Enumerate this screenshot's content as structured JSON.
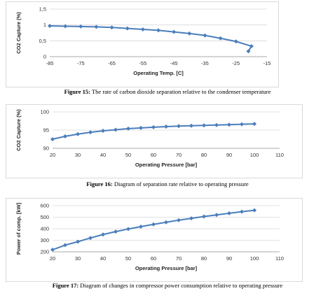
{
  "chart_data": [
    {
      "type": "line",
      "title": "",
      "xlabel": "Operating Temp. [C]",
      "ylabel": "CO2 Capture (%)",
      "xlim": [
        -85,
        -15
      ],
      "ylim": [
        0,
        1.5
      ],
      "xticks": [
        "-85",
        "-75",
        "-65",
        "-55",
        "-45",
        "-35",
        "-25",
        "-15"
      ],
      "yticks": [
        "0",
        "0,5",
        "1",
        "1,5"
      ],
      "grid": "horizontal",
      "color": "#4a7ebb",
      "marker": "diamond",
      "series": [
        {
          "x": [
            -85,
            -80,
            -75,
            -70,
            -65,
            -60,
            -55,
            -50,
            -45,
            -40,
            -35,
            -30,
            -25,
            -20
          ],
          "y": [
            0.97,
            0.96,
            0.95,
            0.94,
            0.92,
            0.89,
            0.86,
            0.83,
            0.78,
            0.73,
            0.67,
            0.58,
            0.48,
            0.33
          ]
        }
      ],
      "extra_point": [
        -21,
        0.17
      ],
      "caption_prefix": "Figure 15:",
      "caption_text": " The rate of carbon dioxide separation relative to the condenser temperature"
    },
    {
      "type": "line",
      "title": "",
      "xlabel": "Operating Pressure [bar]",
      "ylabel": "CO2 Capture (%)",
      "xlim": [
        20,
        110
      ],
      "ylim": [
        90,
        100
      ],
      "xticks": [
        "20",
        "30",
        "40",
        "50",
        "60",
        "70",
        "80",
        "90",
        "100",
        "110"
      ],
      "yticks": [
        "90",
        "95",
        "100"
      ],
      "grid": "horizontal",
      "color": "#4a7ebb",
      "marker": "diamond",
      "series": [
        {
          "x": [
            20,
            25,
            30,
            35,
            40,
            45,
            50,
            55,
            60,
            65,
            70,
            75,
            80,
            85,
            90,
            95,
            100
          ],
          "y": [
            92.5,
            93.3,
            93.9,
            94.4,
            94.8,
            95.1,
            95.4,
            95.6,
            95.8,
            95.95,
            96.1,
            96.2,
            96.3,
            96.4,
            96.5,
            96.6,
            96.7
          ]
        }
      ],
      "caption_prefix": "Figure 16:",
      "caption_text": " Diagram of separation rate relative to operating pressure"
    },
    {
      "type": "line",
      "title": "",
      "xlabel": "Operating Pressure [bar]",
      "ylabel": "Power of comp. [kW]",
      "xlim": [
        20,
        110
      ],
      "ylim": [
        200,
        600
      ],
      "xticks": [
        "20",
        "30",
        "40",
        "50",
        "60",
        "70",
        "80",
        "90",
        "100",
        "110"
      ],
      "yticks": [
        "200",
        "300",
        "400",
        "500",
        "600"
      ],
      "grid": "horizontal",
      "color": "#4a7ebb",
      "marker": "diamond",
      "series": [
        {
          "x": [
            20,
            25,
            30,
            35,
            40,
            45,
            50,
            55,
            60,
            65,
            70,
            75,
            80,
            85,
            90,
            95,
            100
          ],
          "y": [
            218,
            258,
            288,
            320,
            350,
            375,
            398,
            418,
            438,
            456,
            474,
            490,
            506,
            520,
            534,
            548,
            560
          ]
        }
      ],
      "caption_prefix": "Figure 17:",
      "caption_text": " Diagram of changes in compressor power consumption relative to operating pressure"
    }
  ]
}
